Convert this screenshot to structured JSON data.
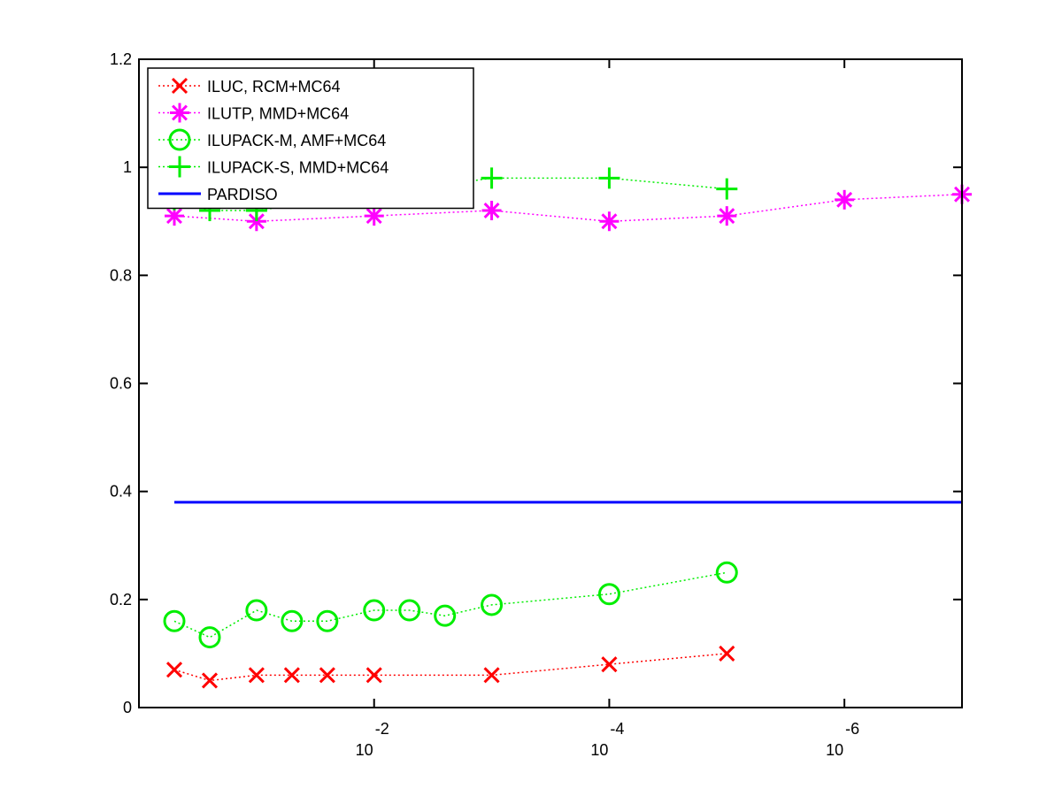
{
  "chart_data": {
    "type": "line",
    "title": "",
    "xlabel": "",
    "ylabel": "",
    "x_scale": "log",
    "x_reversed": true,
    "xlim": [
      1,
      1e-07
    ],
    "ylim": [
      0,
      1.2
    ],
    "grid": false,
    "legend_position": "top-left",
    "y_ticks": [
      "0",
      "0.2",
      "0.4",
      "0.6",
      "0.8",
      "1",
      "1.2"
    ],
    "x_ticks": [
      {
        "value": 0.01,
        "base": "10",
        "exponent": "-2"
      },
      {
        "value": 0.0001,
        "base": "10",
        "exponent": "-4"
      },
      {
        "value": 1e-06,
        "base": "10",
        "exponent": "-6"
      }
    ],
    "series": [
      {
        "name": "ILUC, RCM+MC64",
        "color": "#ff0000",
        "marker": "x",
        "line_style": "dotted",
        "x": [
          0.5,
          0.25,
          0.1,
          0.05,
          0.025,
          0.01,
          0.001,
          0.0001,
          1e-05
        ],
        "y": [
          0.07,
          0.05,
          0.06,
          0.06,
          0.06,
          0.06,
          0.06,
          0.08,
          0.1
        ]
      },
      {
        "name": "ILUTP, MMD+MC64",
        "color": "#ff00ff",
        "marker": "asterisk",
        "line_style": "dotted",
        "x": [
          0.5,
          0.1,
          0.01,
          0.001,
          0.0001,
          1e-05,
          1e-06,
          1e-07
        ],
        "y": [
          0.91,
          0.9,
          0.91,
          0.92,
          0.9,
          0.91,
          0.94,
          0.95
        ]
      },
      {
        "name": "ILUPACK-M, AMF+MC64",
        "color": "#00ee00",
        "marker": "circle",
        "line_style": "dotted",
        "x": [
          0.5,
          0.25,
          0.1,
          0.05,
          0.025,
          0.01,
          0.005,
          0.0025,
          0.001,
          0.0001,
          1e-05
        ],
        "y": [
          0.16,
          0.13,
          0.18,
          0.16,
          0.16,
          0.18,
          0.18,
          0.17,
          0.19,
          0.21,
          0.25
        ]
      },
      {
        "name": "ILUPACK-S, MMD+MC64",
        "color": "#00ee00",
        "marker": "plus",
        "line_style": "dotted",
        "x": [
          0.5,
          0.25,
          0.1,
          0.001,
          0.0001,
          1e-05
        ],
        "y": [
          0.94,
          0.92,
          0.92,
          0.98,
          0.98,
          0.96
        ]
      },
      {
        "name": "PARDISO",
        "color": "#0000ff",
        "marker": "none",
        "line_style": "solid",
        "x": [
          0.5,
          1e-07
        ],
        "y": [
          0.38,
          0.38
        ]
      }
    ]
  }
}
